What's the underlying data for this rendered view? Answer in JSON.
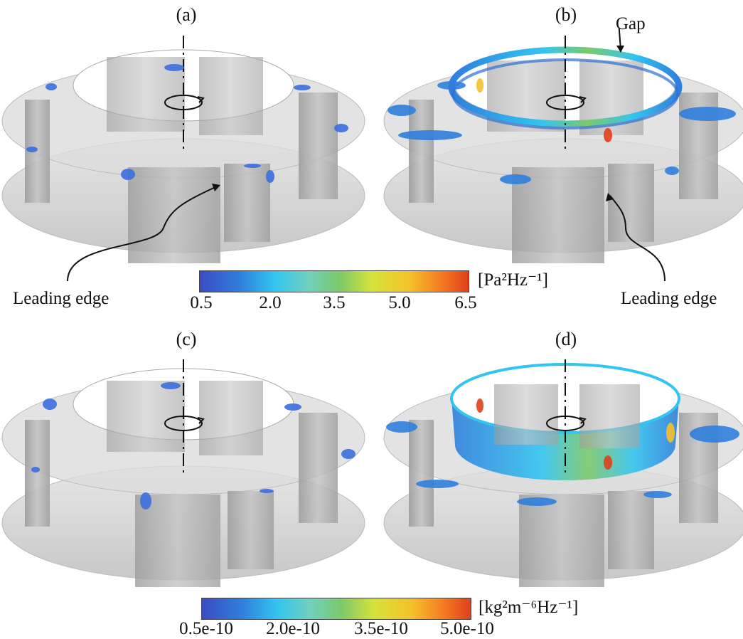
{
  "panels": [
    {
      "label": "(a)"
    },
    {
      "label": "(b)"
    },
    {
      "label": "(c)"
    },
    {
      "label": "(d)"
    }
  ],
  "annotations": {
    "gap": "Gap",
    "leading_edge_left": "Leading edge",
    "leading_edge_right": "Leading edge"
  },
  "colorbar_top": {
    "unit": "[Pa²Hz⁻¹]",
    "ticks": [
      "0.5",
      "2.0",
      "3.5",
      "5.0",
      "6.5"
    ]
  },
  "colorbar_bottom": {
    "unit": "[kg²m⁻⁶Hz⁻¹]",
    "ticks": [
      "0.5e-10",
      "2.0e-10",
      "3.5e-10",
      "5.0e-10"
    ]
  },
  "colors": {
    "shroud": "#d2d2d2",
    "blade": "#a8a8a8",
    "contour_low": "#3b4cc0",
    "contour_high": "#e0401c"
  }
}
